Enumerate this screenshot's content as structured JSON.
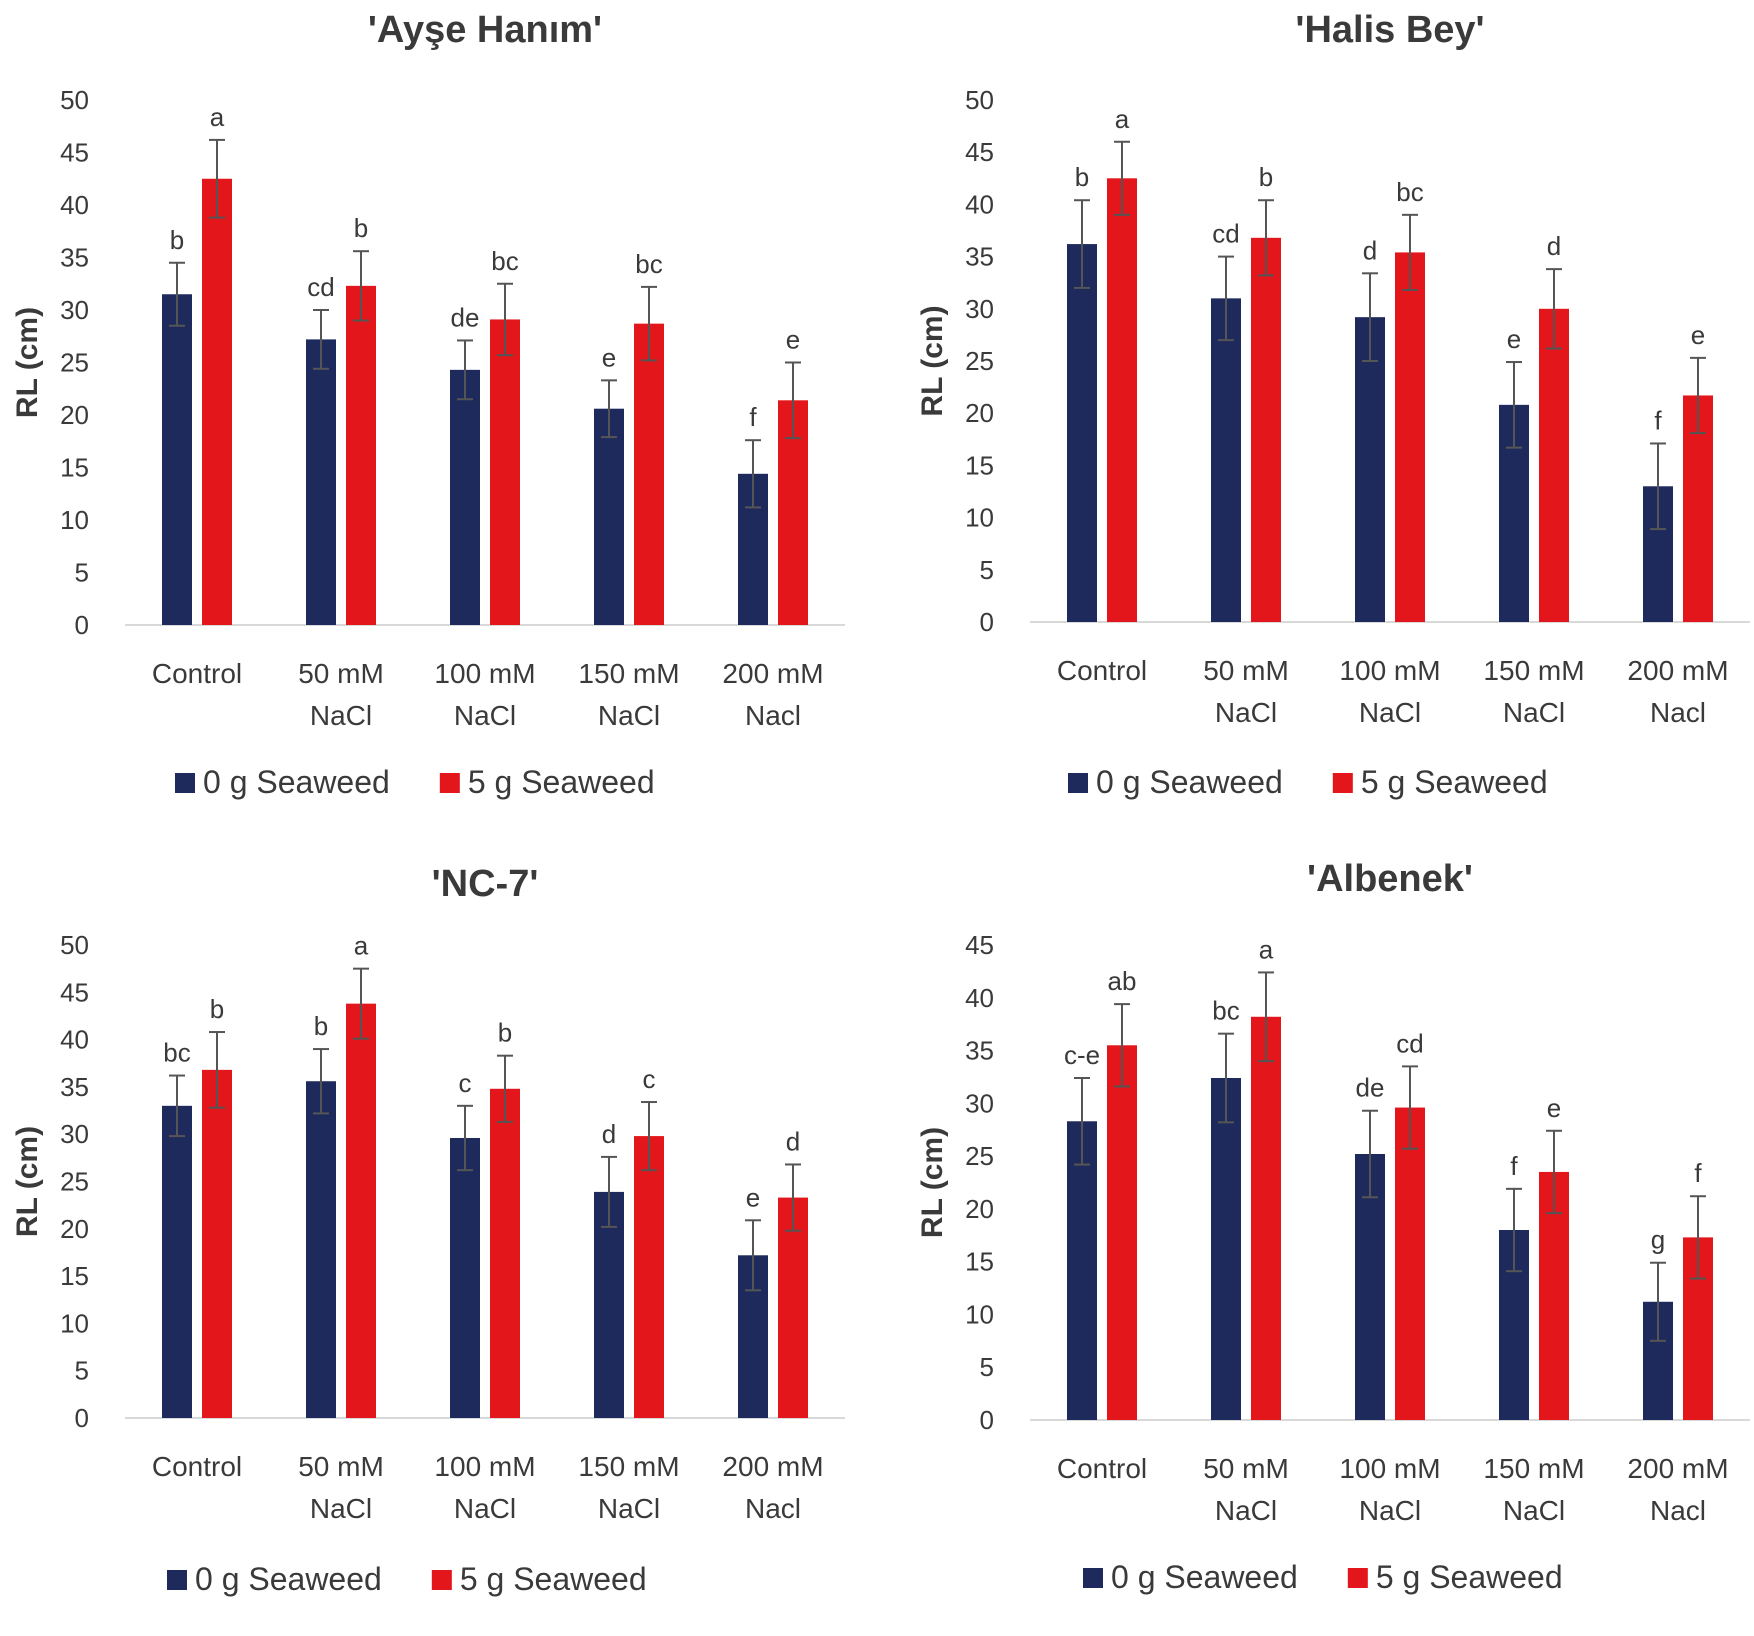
{
  "colors": {
    "series_0": "#1f2a5c",
    "series_1": "#e3161b"
  },
  "chart_data": [
    {
      "type": "bar",
      "title": "'Ayşe Hanım'",
      "ylabel": "RL (cm)",
      "ylim": [
        0,
        50
      ],
      "yticks": [
        0,
        5,
        10,
        15,
        20,
        25,
        30,
        35,
        40,
        45,
        50
      ],
      "categories": [
        [
          "Control"
        ],
        [
          "50 mM",
          "NaCl"
        ],
        [
          "100 mM",
          "NaCl"
        ],
        [
          "150 mM",
          "NaCl"
        ],
        [
          "200 mM",
          "Nacl"
        ]
      ],
      "legend_position": "bottom",
      "series": [
        {
          "name": "0 g Seaweed",
          "values": [
            31.5,
            27.2,
            24.3,
            20.6,
            14.4
          ],
          "errors": [
            3.0,
            2.8,
            2.8,
            2.7,
            3.2
          ],
          "letters": [
            "b",
            "cd",
            "de",
            "e",
            "f"
          ]
        },
        {
          "name": "5 g Seaweed",
          "values": [
            42.5,
            32.3,
            29.1,
            28.7,
            21.4
          ],
          "errors": [
            3.7,
            3.3,
            3.4,
            3.5,
            3.6
          ],
          "letters": [
            "a",
            "b",
            "bc",
            "bc",
            "e"
          ]
        }
      ]
    },
    {
      "type": "bar",
      "title": "'Halis Bey'",
      "ylabel": "RL (cm)",
      "ylim": [
        0,
        50
      ],
      "yticks": [
        0,
        5,
        10,
        15,
        20,
        25,
        30,
        35,
        40,
        45,
        50
      ],
      "categories": [
        [
          "Control"
        ],
        [
          "50 mM",
          "NaCl"
        ],
        [
          "100 mM",
          "NaCl"
        ],
        [
          "150 mM",
          "NaCl"
        ],
        [
          "200 mM",
          "Nacl"
        ]
      ],
      "legend_position": "bottom",
      "series": [
        {
          "name": "0 g Seaweed",
          "values": [
            36.2,
            31.0,
            29.2,
            20.8,
            13.0
          ],
          "errors": [
            4.2,
            4.0,
            4.2,
            4.1,
            4.1
          ],
          "letters": [
            "b",
            "cd",
            "d",
            "e",
            "f"
          ]
        },
        {
          "name": "5 g Seaweed",
          "values": [
            42.5,
            36.8,
            35.4,
            30.0,
            21.7
          ],
          "errors": [
            3.5,
            3.6,
            3.6,
            3.8,
            3.6
          ],
          "letters": [
            "a",
            "b",
            "bc",
            "d",
            "e"
          ]
        }
      ]
    },
    {
      "type": "bar",
      "title": "'NC-7'",
      "ylabel": "RL (cm)",
      "ylim": [
        0,
        50
      ],
      "yticks": [
        0,
        5,
        10,
        15,
        20,
        25,
        30,
        35,
        40,
        45,
        50
      ],
      "categories": [
        [
          "Control"
        ],
        [
          "50 mM",
          "NaCl"
        ],
        [
          "100 mM",
          "NaCl"
        ],
        [
          "150 mM",
          "NaCl"
        ],
        [
          "200 mM",
          "Nacl"
        ]
      ],
      "legend_position": "bottom",
      "series": [
        {
          "name": "0 g Seaweed",
          "values": [
            33.0,
            35.6,
            29.6,
            23.9,
            17.2
          ],
          "errors": [
            3.2,
            3.4,
            3.4,
            3.7,
            3.7
          ],
          "letters": [
            "bc",
            "b",
            "c",
            "d",
            "e"
          ]
        },
        {
          "name": "5 g Seaweed",
          "values": [
            36.8,
            43.8,
            34.8,
            29.8,
            23.3
          ],
          "errors": [
            4.0,
            3.7,
            3.5,
            3.6,
            3.5
          ],
          "letters": [
            "b",
            "a",
            "b",
            "c",
            "d"
          ]
        }
      ]
    },
    {
      "type": "bar",
      "title": "'Albenek'",
      "ylabel": "RL (cm)",
      "ylim": [
        0,
        45
      ],
      "yticks": [
        0,
        5,
        10,
        15,
        20,
        25,
        30,
        35,
        40,
        45
      ],
      "categories": [
        [
          "Control"
        ],
        [
          "50 mM",
          "NaCl"
        ],
        [
          "100 mM",
          "NaCl"
        ],
        [
          "150 mM",
          "NaCl"
        ],
        [
          "200 mM",
          "Nacl"
        ]
      ],
      "legend_position": "bottom",
      "series": [
        {
          "name": "0 g Seaweed",
          "values": [
            28.3,
            32.4,
            25.2,
            18.0,
            11.2
          ],
          "errors": [
            4.1,
            4.2,
            4.1,
            3.9,
            3.7
          ],
          "letters": [
            "c-e",
            "bc",
            "de",
            "f",
            "g"
          ]
        },
        {
          "name": "5 g Seaweed",
          "values": [
            35.5,
            38.2,
            29.6,
            23.5,
            17.3
          ],
          "errors": [
            3.9,
            4.2,
            3.9,
            3.9,
            3.9
          ],
          "letters": [
            "ab",
            "a",
            "cd",
            "e",
            "f"
          ]
        }
      ]
    }
  ]
}
